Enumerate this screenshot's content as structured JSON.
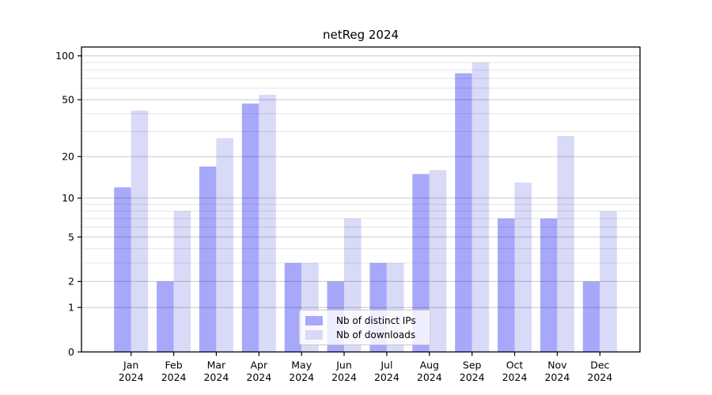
{
  "chart_data": {
    "type": "bar",
    "title": "netReg 2024",
    "categories": [
      "Jan 2024",
      "Feb 2024",
      "Mar 2024",
      "Apr 2024",
      "May 2024",
      "Jun 2024",
      "Jul 2024",
      "Aug 2024",
      "Sep 2024",
      "Oct 2024",
      "Nov 2024",
      "Dec 2024"
    ],
    "series": [
      {
        "name": "Nb of distinct IPs",
        "color": "#a8a8fa",
        "values": [
          12,
          2,
          17,
          47,
          3,
          2,
          3,
          15,
          76,
          7,
          7,
          2
        ]
      },
      {
        "name": "Nb of downloads",
        "color": "#d9d9f8",
        "values": [
          42,
          8,
          27,
          54,
          3,
          7,
          3,
          16,
          90,
          13,
          28,
          8
        ]
      }
    ],
    "xlabel": "",
    "ylabel": "",
    "y_scale": "log10(1+x)",
    "y_ticks": [
      0,
      1,
      2,
      5,
      10,
      20,
      50,
      100
    ],
    "y_minor_gridlines": [
      3,
      4,
      6,
      7,
      8,
      9,
      30,
      40,
      60,
      70,
      80,
      90
    ],
    "ylim": [
      0,
      115
    ],
    "grid": true,
    "legend_position": "lower center"
  },
  "colors": {
    "grid_minor": "rgba(0,0,0,0.10)",
    "grid_major": "rgba(0,0,0,0.21)",
    "spine": "#000000",
    "tick_label": "#000000"
  }
}
